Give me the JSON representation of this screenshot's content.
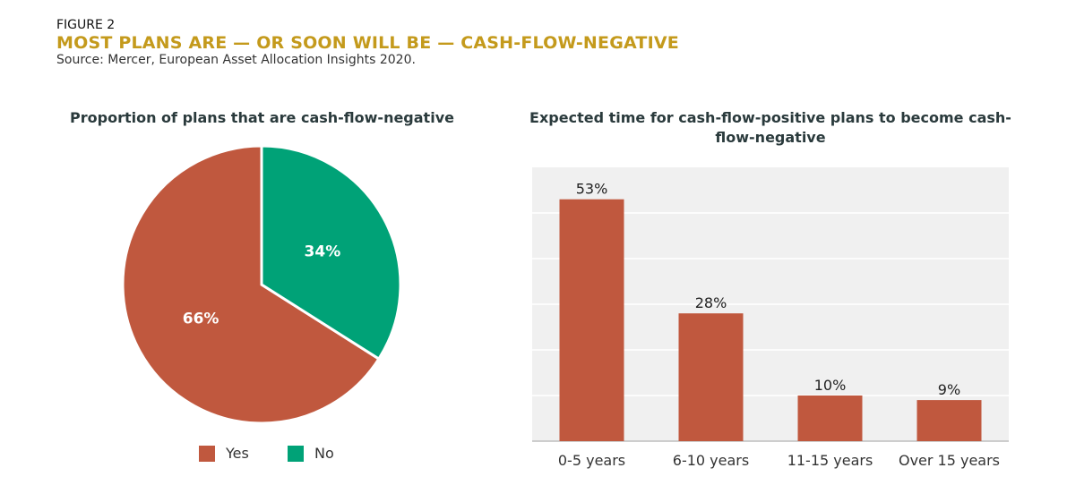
{
  "header": {
    "figure_label": "FIGURE 2",
    "title": "MOST PLANS ARE — OR SOON WILL BE — CASH-FLOW-NEGATIVE",
    "source": "Source: Mercer, European Asset Allocation Insights 2020."
  },
  "colors": {
    "yes": "#c0583e",
    "no": "#00a277",
    "plot_bg": "#f0f0f0",
    "grid": "#ffffff"
  },
  "chart_data": [
    {
      "type": "pie",
      "title": "Proportion of plans that are cash-flow-negative",
      "slices": [
        {
          "label": "Yes",
          "value": 66,
          "display": "66%"
        },
        {
          "label": "No",
          "value": 34,
          "display": "34%"
        }
      ],
      "legend": [
        "Yes",
        "No"
      ],
      "legend_position": "bottom"
    },
    {
      "type": "bar",
      "title": "Expected time for cash-flow-positive plans to become cash-flow-negative",
      "categories": [
        "0-5 years",
        "6-10 years",
        "11-15 years",
        "Over 15 years"
      ],
      "values": [
        53,
        28,
        10,
        9
      ],
      "labels": [
        "53%",
        "28%",
        "10%",
        "9%"
      ],
      "ylim": [
        0,
        60
      ],
      "grid": true
    }
  ]
}
